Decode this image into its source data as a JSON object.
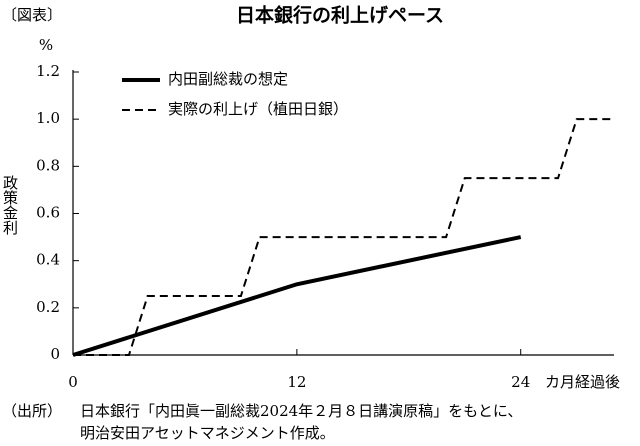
{
  "chart_data": {
    "type": "line",
    "label": "〔図表〕",
    "title": "日本銀行の利上げペース",
    "y_unit": "%",
    "y_label": "政策金利",
    "x_label": "カ月経過後",
    "xlim": [
      0,
      29
    ],
    "xticks": [
      0,
      12,
      24
    ],
    "ylim": [
      0,
      1.2
    ],
    "yticks": [
      0,
      0.2,
      0.4,
      0.6,
      0.8,
      {
        "value": 1,
        "label": "1.0"
      },
      1.2
    ],
    "legend": "upper left",
    "series": [
      {
        "name": "内田副総裁の想定",
        "color": "#000000",
        "style": "solid",
        "x": [
          0,
          12,
          24
        ],
        "values": [
          0,
          0.3,
          0.5
        ]
      },
      {
        "name": "実際の利上げ（植田日銀）",
        "color": "#000000",
        "style": "dashed",
        "x": [
          0,
          3,
          4,
          9,
          10,
          20,
          21,
          26,
          27,
          29
        ],
        "values": [
          0,
          0,
          0.25,
          0.25,
          0.5,
          0.5,
          0.75,
          0.75,
          1,
          1
        ]
      }
    ],
    "source_label": "（出所）",
    "source_lines": [
      "日本銀行「内田眞一副総裁2024年２月８日講演原稿」をもとに、",
      "明治安田アセットマネジメント作成。"
    ]
  }
}
